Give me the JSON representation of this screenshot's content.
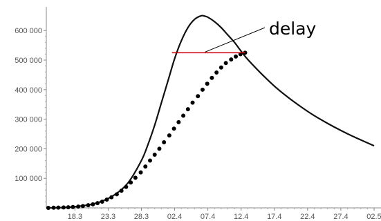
{
  "chart_data": {
    "type": "line",
    "title": "",
    "xlabel": "",
    "ylabel": "",
    "x_tick_labels": [
      "18.3",
      "23.3",
      "28.3",
      "02.4",
      "07.4",
      "12.4",
      "17.4",
      "22.4",
      "27.4",
      "02.5"
    ],
    "x_tick_days": [
      0,
      5,
      10,
      15,
      20,
      25,
      30,
      35,
      40,
      45
    ],
    "xlim": [
      -4.3,
      45
    ],
    "y_tick_labels": [
      "100 000",
      "200 000",
      "300 000",
      "400 000",
      "500 000",
      "600 000"
    ],
    "y_tick_values": [
      100000,
      200000,
      300000,
      400000,
      500000,
      600000
    ],
    "ylim": [
      0,
      680000
    ],
    "series": [
      {
        "style": "solid-line",
        "color": "#111111",
        "x": [
          -4.3,
          -2,
          0,
          2,
          4,
          6,
          8,
          10,
          11,
          12,
          13,
          14,
          15,
          16,
          17,
          18,
          19,
          19.5,
          20,
          21,
          22,
          23,
          24,
          25,
          26,
          28,
          30,
          32,
          34,
          36,
          38,
          40,
          42,
          44,
          45
        ],
        "y": [
          0,
          1000,
          4000,
          10000,
          22000,
          45000,
          85000,
          160000,
          215000,
          280000,
          355000,
          430000,
          505000,
          565000,
          610000,
          638000,
          650000,
          649000,
          645000,
          630000,
          610000,
          585000,
          560000,
          530000,
          502000,
          455000,
          412000,
          375000,
          342000,
          312000,
          286000,
          262000,
          240000,
          220000,
          210000
        ]
      },
      {
        "style": "dotted",
        "color": "#000000",
        "x": [
          -4,
          -3.2,
          -2.5,
          -1.7,
          -1,
          -0.3,
          0.5,
          1.2,
          2,
          2.7,
          3.4,
          4.1,
          4.8,
          5.5,
          6.3,
          7,
          7.7,
          8.4,
          9.1,
          9.9,
          10.6,
          11.3,
          12,
          12.7,
          13.4,
          14.2,
          14.9,
          15.6,
          16.3,
          17,
          17.7,
          18.5,
          19.2,
          19.9,
          20.6,
          21.3,
          22,
          22.7,
          23.5,
          24.2,
          24.9,
          25.6
        ],
        "y": [
          0,
          500,
          1000,
          1500,
          2000,
          3000,
          4500,
          6000,
          9000,
          12000,
          16000,
          21000,
          28000,
          36000,
          46000,
          58000,
          71000,
          86000,
          102000,
          120000,
          140000,
          160000,
          180000,
          200000,
          222000,
          245000,
          268000,
          290000,
          312000,
          334000,
          356000,
          378000,
          400000,
          420000,
          440000,
          458000,
          475000,
          490000,
          502000,
          512000,
          520000,
          525000
        ]
      }
    ],
    "annotations": [
      {
        "label": "delay",
        "marker_color": "#cc0000",
        "y": 525000,
        "x_start": 14.6,
        "x_end": 25.6
      }
    ]
  }
}
